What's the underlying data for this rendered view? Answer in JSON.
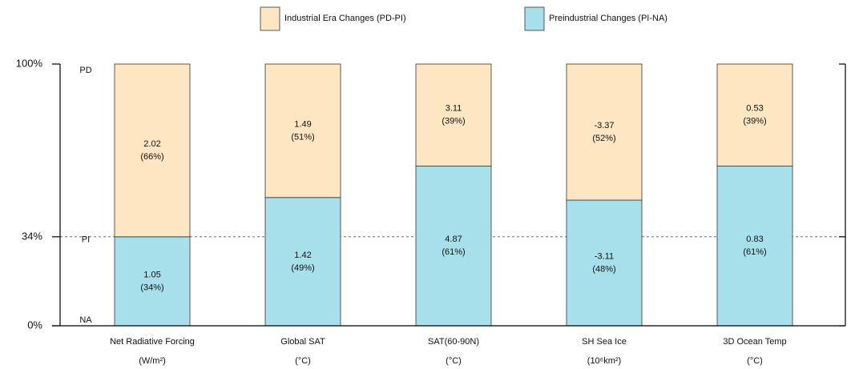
{
  "chart_data": {
    "type": "stacked_bar_100",
    "categories": [
      "Net Radiative Forcing",
      "Global SAT",
      "SAT(60-90N)",
      "SH Sea Ice",
      "3D Ocean Temp"
    ],
    "units": [
      "(W/m²)",
      "(°C)",
      "(°C)",
      "(10⁶km²)",
      "(°C)"
    ],
    "series": [
      {
        "name": "Industrial Era Changes (PD-PI)",
        "color": "#fde6c1",
        "values": [
          66,
          51,
          39,
          52,
          39
        ],
        "value_labels": [
          "(66%)",
          "(51%)",
          "(39%)",
          "(52%)",
          "(39%)"
        ],
        "amounts": [
          2.02,
          1.49,
          3.11,
          -3.37,
          0.53
        ]
      },
      {
        "name": "Preindustrial Changes (PI-NA)",
        "color": "#a7e0ea",
        "values": [
          34,
          49,
          61,
          48,
          61
        ],
        "value_labels": [
          "(34%)",
          "(49%)",
          "(61%)",
          "(48%)",
          "(61%)"
        ],
        "amounts": [
          1.05,
          1.42,
          4.87,
          -3.11,
          0.83
        ]
      }
    ],
    "ylim": [
      0,
      100
    ],
    "yticks": [
      {
        "value": 0,
        "label": "0%"
      },
      {
        "value": 34,
        "label": "34%"
      },
      {
        "value": 100,
        "label": "100%"
      }
    ],
    "reference_labels": [
      {
        "value": 100,
        "label": "PD"
      },
      {
        "value": 34,
        "label": "PI"
      },
      {
        "value": 0,
        "label": "NA"
      }
    ],
    "hline": 34
  }
}
